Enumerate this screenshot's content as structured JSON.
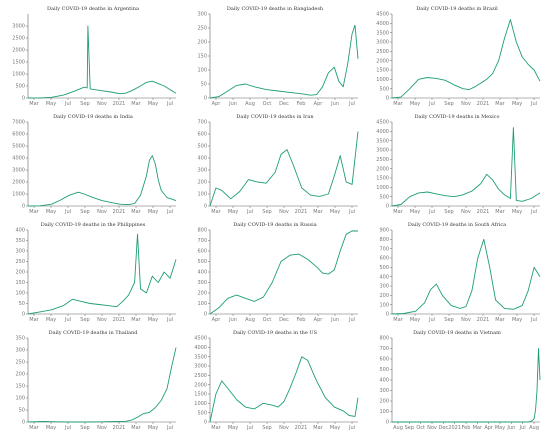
{
  "colors": {
    "line": "#1e9e72",
    "axis": "#666666",
    "tick_text": "#777777",
    "background": "#ffffff"
  },
  "chart_data": [
    {
      "type": "line",
      "title": "Daily COVID-19 deaths in Argentina",
      "ylim": [
        0,
        3500
      ],
      "yticks": [
        0,
        500,
        1000,
        1500,
        2000,
        2500,
        3000
      ],
      "xticks": [
        "Mar",
        "May",
        "Jul",
        "Sep",
        "Nov",
        "2021",
        "Mar",
        "May",
        "Jul"
      ],
      "series": [
        {
          "x": [
            0,
            0.08,
            0.16,
            0.24,
            0.32,
            0.38,
            0.4,
            0.405,
            0.42,
            0.48,
            0.56,
            0.62,
            0.66,
            0.7,
            0.76,
            0.8,
            0.84,
            0.88,
            0.92,
            0.96,
            1.0
          ],
          "values": [
            0,
            5,
            30,
            120,
            300,
            450,
            420,
            3000,
            380,
            320,
            250,
            180,
            200,
            300,
            500,
            650,
            700,
            600,
            500,
            350,
            200
          ]
        }
      ]
    },
    {
      "type": "line",
      "title": "Daily COVID-19 deaths in Bangladesh",
      "ylim": [
        0,
        300
      ],
      "yticks": [
        0,
        50,
        100,
        150,
        200,
        250,
        300
      ],
      "xticks": [
        "Apr",
        "Jun",
        "Aug",
        "Oct",
        "Dec",
        "Feb",
        "Apr",
        "Jun",
        "Jul"
      ],
      "series": [
        {
          "x": [
            0,
            0.06,
            0.12,
            0.18,
            0.24,
            0.3,
            0.38,
            0.46,
            0.54,
            0.62,
            0.68,
            0.72,
            0.76,
            0.8,
            0.84,
            0.87,
            0.9,
            0.93,
            0.96,
            0.98,
            1.0
          ],
          "values": [
            0,
            5,
            25,
            45,
            50,
            40,
            30,
            25,
            20,
            15,
            10,
            12,
            40,
            90,
            110,
            60,
            40,
            120,
            230,
            260,
            140
          ]
        }
      ]
    },
    {
      "type": "line",
      "title": "Daily COVID-19 deaths in Brazil",
      "ylim": [
        0,
        4500
      ],
      "yticks": [
        0,
        500,
        1000,
        1500,
        2000,
        2500,
        3000,
        3500,
        4000,
        4500
      ],
      "xticks": [
        "Mar",
        "May",
        "Jul",
        "Sep",
        "Nov",
        "2021",
        "Mar",
        "May",
        "Jul"
      ],
      "series": [
        {
          "x": [
            0,
            0.06,
            0.12,
            0.18,
            0.24,
            0.3,
            0.36,
            0.42,
            0.48,
            0.52,
            0.56,
            0.6,
            0.64,
            0.68,
            0.72,
            0.76,
            0.8,
            0.84,
            0.88,
            0.92,
            0.96,
            1.0
          ],
          "values": [
            0,
            50,
            500,
            1000,
            1100,
            1050,
            950,
            700,
            500,
            450,
            600,
            800,
            1000,
            1300,
            2000,
            3200,
            4200,
            3000,
            2200,
            1800,
            1500,
            900
          ]
        }
      ]
    },
    {
      "type": "line",
      "title": "Daily COVID-19 deaths in India",
      "ylim": [
        0,
        7000
      ],
      "yticks": [
        0,
        1000,
        2000,
        3000,
        4000,
        5000,
        6000,
        7000
      ],
      "xticks": [
        "Mar",
        "May",
        "Jul",
        "Sep",
        "Nov",
        "2021",
        "Mar",
        "May",
        "Jul"
      ],
      "series": [
        {
          "x": [
            0,
            0.08,
            0.16,
            0.22,
            0.28,
            0.34,
            0.38,
            0.44,
            0.5,
            0.56,
            0.62,
            0.68,
            0.72,
            0.76,
            0.8,
            0.82,
            0.84,
            0.86,
            0.88,
            0.9,
            0.94,
            1.0
          ],
          "values": [
            0,
            20,
            150,
            500,
            900,
            1150,
            1000,
            700,
            450,
            300,
            150,
            120,
            200,
            900,
            2500,
            3800,
            4200,
            3500,
            2200,
            1300,
            700,
            450
          ]
        }
      ]
    },
    {
      "type": "line",
      "title": "Daily COVID-19 deaths in Iran",
      "ylim": [
        0,
        700
      ],
      "yticks": [
        0,
        100,
        200,
        300,
        400,
        500,
        600,
        700
      ],
      "xticks": [
        "Mar",
        "May",
        "Jul",
        "Sep",
        "Nov",
        "2021",
        "Mar",
        "May",
        "Jul"
      ],
      "series": [
        {
          "x": [
            0,
            0.04,
            0.08,
            0.14,
            0.2,
            0.26,
            0.32,
            0.38,
            0.44,
            0.48,
            0.52,
            0.56,
            0.62,
            0.68,
            0.74,
            0.8,
            0.84,
            0.88,
            0.92,
            0.96,
            1.0
          ],
          "values": [
            0,
            150,
            130,
            60,
            120,
            220,
            200,
            190,
            280,
            430,
            470,
            350,
            150,
            90,
            80,
            100,
            250,
            420,
            200,
            180,
            620
          ]
        }
      ]
    },
    {
      "type": "line",
      "title": "Daily COVID-19 deaths in Mexico",
      "ylim": [
        0,
        4500
      ],
      "yticks": [
        0,
        500,
        1000,
        1500,
        2000,
        2500,
        3000,
        3500,
        4000,
        4500
      ],
      "xticks": [
        "Mar",
        "May",
        "Jul",
        "Sep",
        "Nov",
        "2021",
        "Mar",
        "May",
        "Jul"
      ],
      "series": [
        {
          "x": [
            0,
            0.06,
            0.12,
            0.18,
            0.24,
            0.3,
            0.36,
            0.42,
            0.48,
            0.54,
            0.6,
            0.64,
            0.68,
            0.72,
            0.76,
            0.8,
            0.82,
            0.84,
            0.88,
            0.94,
            1.0
          ],
          "values": [
            0,
            80,
            500,
            700,
            750,
            650,
            550,
            500,
            600,
            800,
            1200,
            1700,
            1400,
            900,
            600,
            400,
            4200,
            300,
            250,
            400,
            700
          ]
        }
      ]
    },
    {
      "type": "line",
      "title": "Daily COVID-19 deaths in the Philippines",
      "ylim": [
        0,
        400
      ],
      "yticks": [
        0,
        50,
        100,
        150,
        200,
        250,
        300,
        350,
        400
      ],
      "xticks": [
        "Mar",
        "May",
        "Jul",
        "Sep",
        "Nov",
        "2021",
        "Mar",
        "May",
        "Jul"
      ],
      "series": [
        {
          "x": [
            0,
            0.08,
            0.16,
            0.24,
            0.3,
            0.36,
            0.42,
            0.48,
            0.54,
            0.6,
            0.64,
            0.68,
            0.72,
            0.74,
            0.76,
            0.8,
            0.84,
            0.88,
            0.92,
            0.96,
            1.0
          ],
          "values": [
            0,
            10,
            20,
            40,
            70,
            60,
            50,
            45,
            40,
            35,
            60,
            90,
            150,
            380,
            120,
            100,
            180,
            150,
            200,
            170,
            260
          ]
        }
      ]
    },
    {
      "type": "line",
      "title": "Daily COVID-19 deaths in Russia",
      "ylim": [
        0,
        800
      ],
      "yticks": [
        0,
        100,
        200,
        300,
        400,
        500,
        600,
        700,
        800
      ],
      "xticks": [
        "Apr",
        "Jun",
        "Aug",
        "Oct",
        "Dec",
        "Feb",
        "Apr",
        "Jun",
        "Jul"
      ],
      "series": [
        {
          "x": [
            0,
            0.06,
            0.12,
            0.18,
            0.24,
            0.3,
            0.36,
            0.42,
            0.48,
            0.54,
            0.6,
            0.66,
            0.72,
            0.76,
            0.8,
            0.84,
            0.88,
            0.92,
            0.96,
            1.0
          ],
          "values": [
            0,
            60,
            150,
            180,
            150,
            120,
            160,
            300,
            500,
            560,
            570,
            520,
            450,
            390,
            380,
            420,
            600,
            760,
            790,
            790
          ]
        }
      ]
    },
    {
      "type": "line",
      "title": "Daily COVID-19 deaths in South Africa",
      "ylim": [
        0,
        900
      ],
      "yticks": [
        0,
        100,
        200,
        300,
        400,
        500,
        600,
        700,
        800,
        900
      ],
      "xticks": [
        "Mar",
        "May",
        "Jul",
        "Sep",
        "Nov",
        "2021",
        "Mar",
        "May",
        "Jul"
      ],
      "series": [
        {
          "x": [
            0,
            0.08,
            0.16,
            0.22,
            0.26,
            0.3,
            0.34,
            0.4,
            0.46,
            0.5,
            0.54,
            0.58,
            0.62,
            0.66,
            0.7,
            0.76,
            0.82,
            0.88,
            0.92,
            0.96,
            1.0
          ],
          "values": [
            0,
            5,
            30,
            120,
            260,
            320,
            200,
            90,
            60,
            80,
            250,
            600,
            800,
            500,
            150,
            60,
            50,
            90,
            250,
            500,
            400
          ]
        }
      ]
    },
    {
      "type": "line",
      "title": "Daily COVID-19 deaths in Thailand",
      "ylim": [
        0,
        350
      ],
      "yticks": [
        0,
        50,
        100,
        150,
        200,
        250,
        300,
        350
      ],
      "xticks": [
        "Mar",
        "May",
        "Jul",
        "Sep",
        "Nov",
        "2021",
        "Mar",
        "May",
        "Jul"
      ],
      "series": [
        {
          "x": [
            0,
            0.1,
            0.2,
            0.3,
            0.4,
            0.5,
            0.6,
            0.66,
            0.7,
            0.74,
            0.78,
            0.82,
            0.86,
            0.9,
            0.94,
            0.97,
            1.0
          ],
          "values": [
            0,
            2,
            1,
            0,
            0,
            1,
            2,
            3,
            8,
            20,
            35,
            40,
            60,
            90,
            140,
            230,
            310
          ]
        }
      ]
    },
    {
      "type": "line",
      "title": "Daily COVID-19 deaths in the US",
      "ylim": [
        0,
        4500
      ],
      "yticks": [
        0,
        500,
        1000,
        1500,
        2000,
        2500,
        3000,
        3500,
        4000,
        4500
      ],
      "xticks": [
        "Mar",
        "May",
        "Jul",
        "Sep",
        "Nov",
        "2021",
        "Mar",
        "May",
        "Jul"
      ],
      "series": [
        {
          "x": [
            0,
            0.04,
            0.08,
            0.12,
            0.18,
            0.24,
            0.3,
            0.36,
            0.42,
            0.46,
            0.5,
            0.54,
            0.58,
            0.62,
            0.66,
            0.72,
            0.78,
            0.84,
            0.9,
            0.94,
            0.98,
            1.0
          ],
          "values": [
            0,
            1500,
            2200,
            1800,
            1200,
            800,
            700,
            1000,
            900,
            800,
            1100,
            1800,
            2600,
            3500,
            3300,
            2200,
            1300,
            800,
            600,
            350,
            300,
            1300
          ]
        }
      ]
    },
    {
      "type": "line",
      "title": "Daily COVID-19 deaths in Vietnam",
      "ylim": [
        0,
        800
      ],
      "yticks": [
        0,
        100,
        200,
        300,
        400,
        500,
        600,
        700,
        800
      ],
      "xticks": [
        "Aug",
        "Sep",
        "Oct",
        "Nov",
        "Dec",
        "2021",
        "Feb",
        "Mar",
        "Apr",
        "May",
        "Jun",
        "Jul",
        "Aug"
      ],
      "series": [
        {
          "x": [
            0,
            0.2,
            0.4,
            0.6,
            0.8,
            0.88,
            0.92,
            0.94,
            0.96,
            0.97,
            0.98,
            0.99,
            1.0
          ],
          "values": [
            0,
            0,
            0,
            0,
            0,
            0,
            1,
            5,
            30,
            120,
            300,
            700,
            400
          ]
        }
      ]
    }
  ]
}
